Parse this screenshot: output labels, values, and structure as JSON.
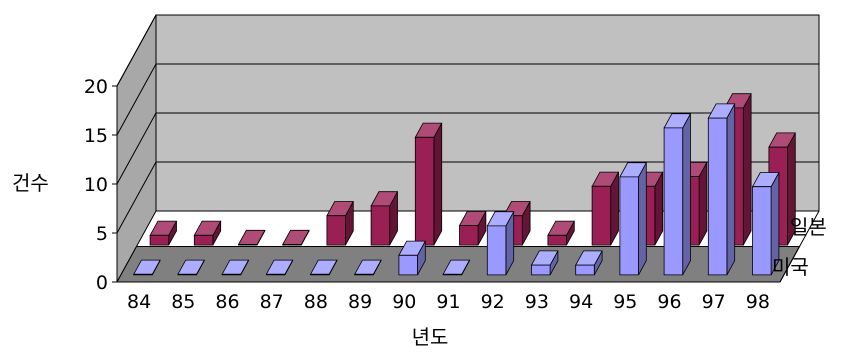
{
  "chart_data": {
    "type": "bar",
    "style": "3d-clustered-depth",
    "xlabel": "년도",
    "ylabel": "건수",
    "ylim": [
      0,
      20
    ],
    "yticks": [
      0,
      5,
      10,
      15,
      20
    ],
    "categories": [
      "84",
      "85",
      "86",
      "87",
      "88",
      "89",
      "90",
      "91",
      "92",
      "93",
      "94",
      "95",
      "96",
      "97",
      "98"
    ],
    "series": [
      {
        "name": "일본",
        "color": "#9a1f55",
        "values": [
          1,
          1,
          0,
          0,
          3,
          4,
          11,
          2,
          3,
          1,
          6,
          6,
          7,
          14,
          10
        ]
      },
      {
        "name": "미국",
        "color": "#9999ff",
        "values": [
          0,
          0,
          0,
          0,
          0,
          0,
          2,
          0,
          5,
          1,
          1,
          10,
          15,
          16,
          9
        ]
      }
    ],
    "grid": true,
    "legend": "right",
    "colors": {
      "wall": "#c0c0c0",
      "floor": "#808080",
      "gridline": "#000000"
    }
  }
}
